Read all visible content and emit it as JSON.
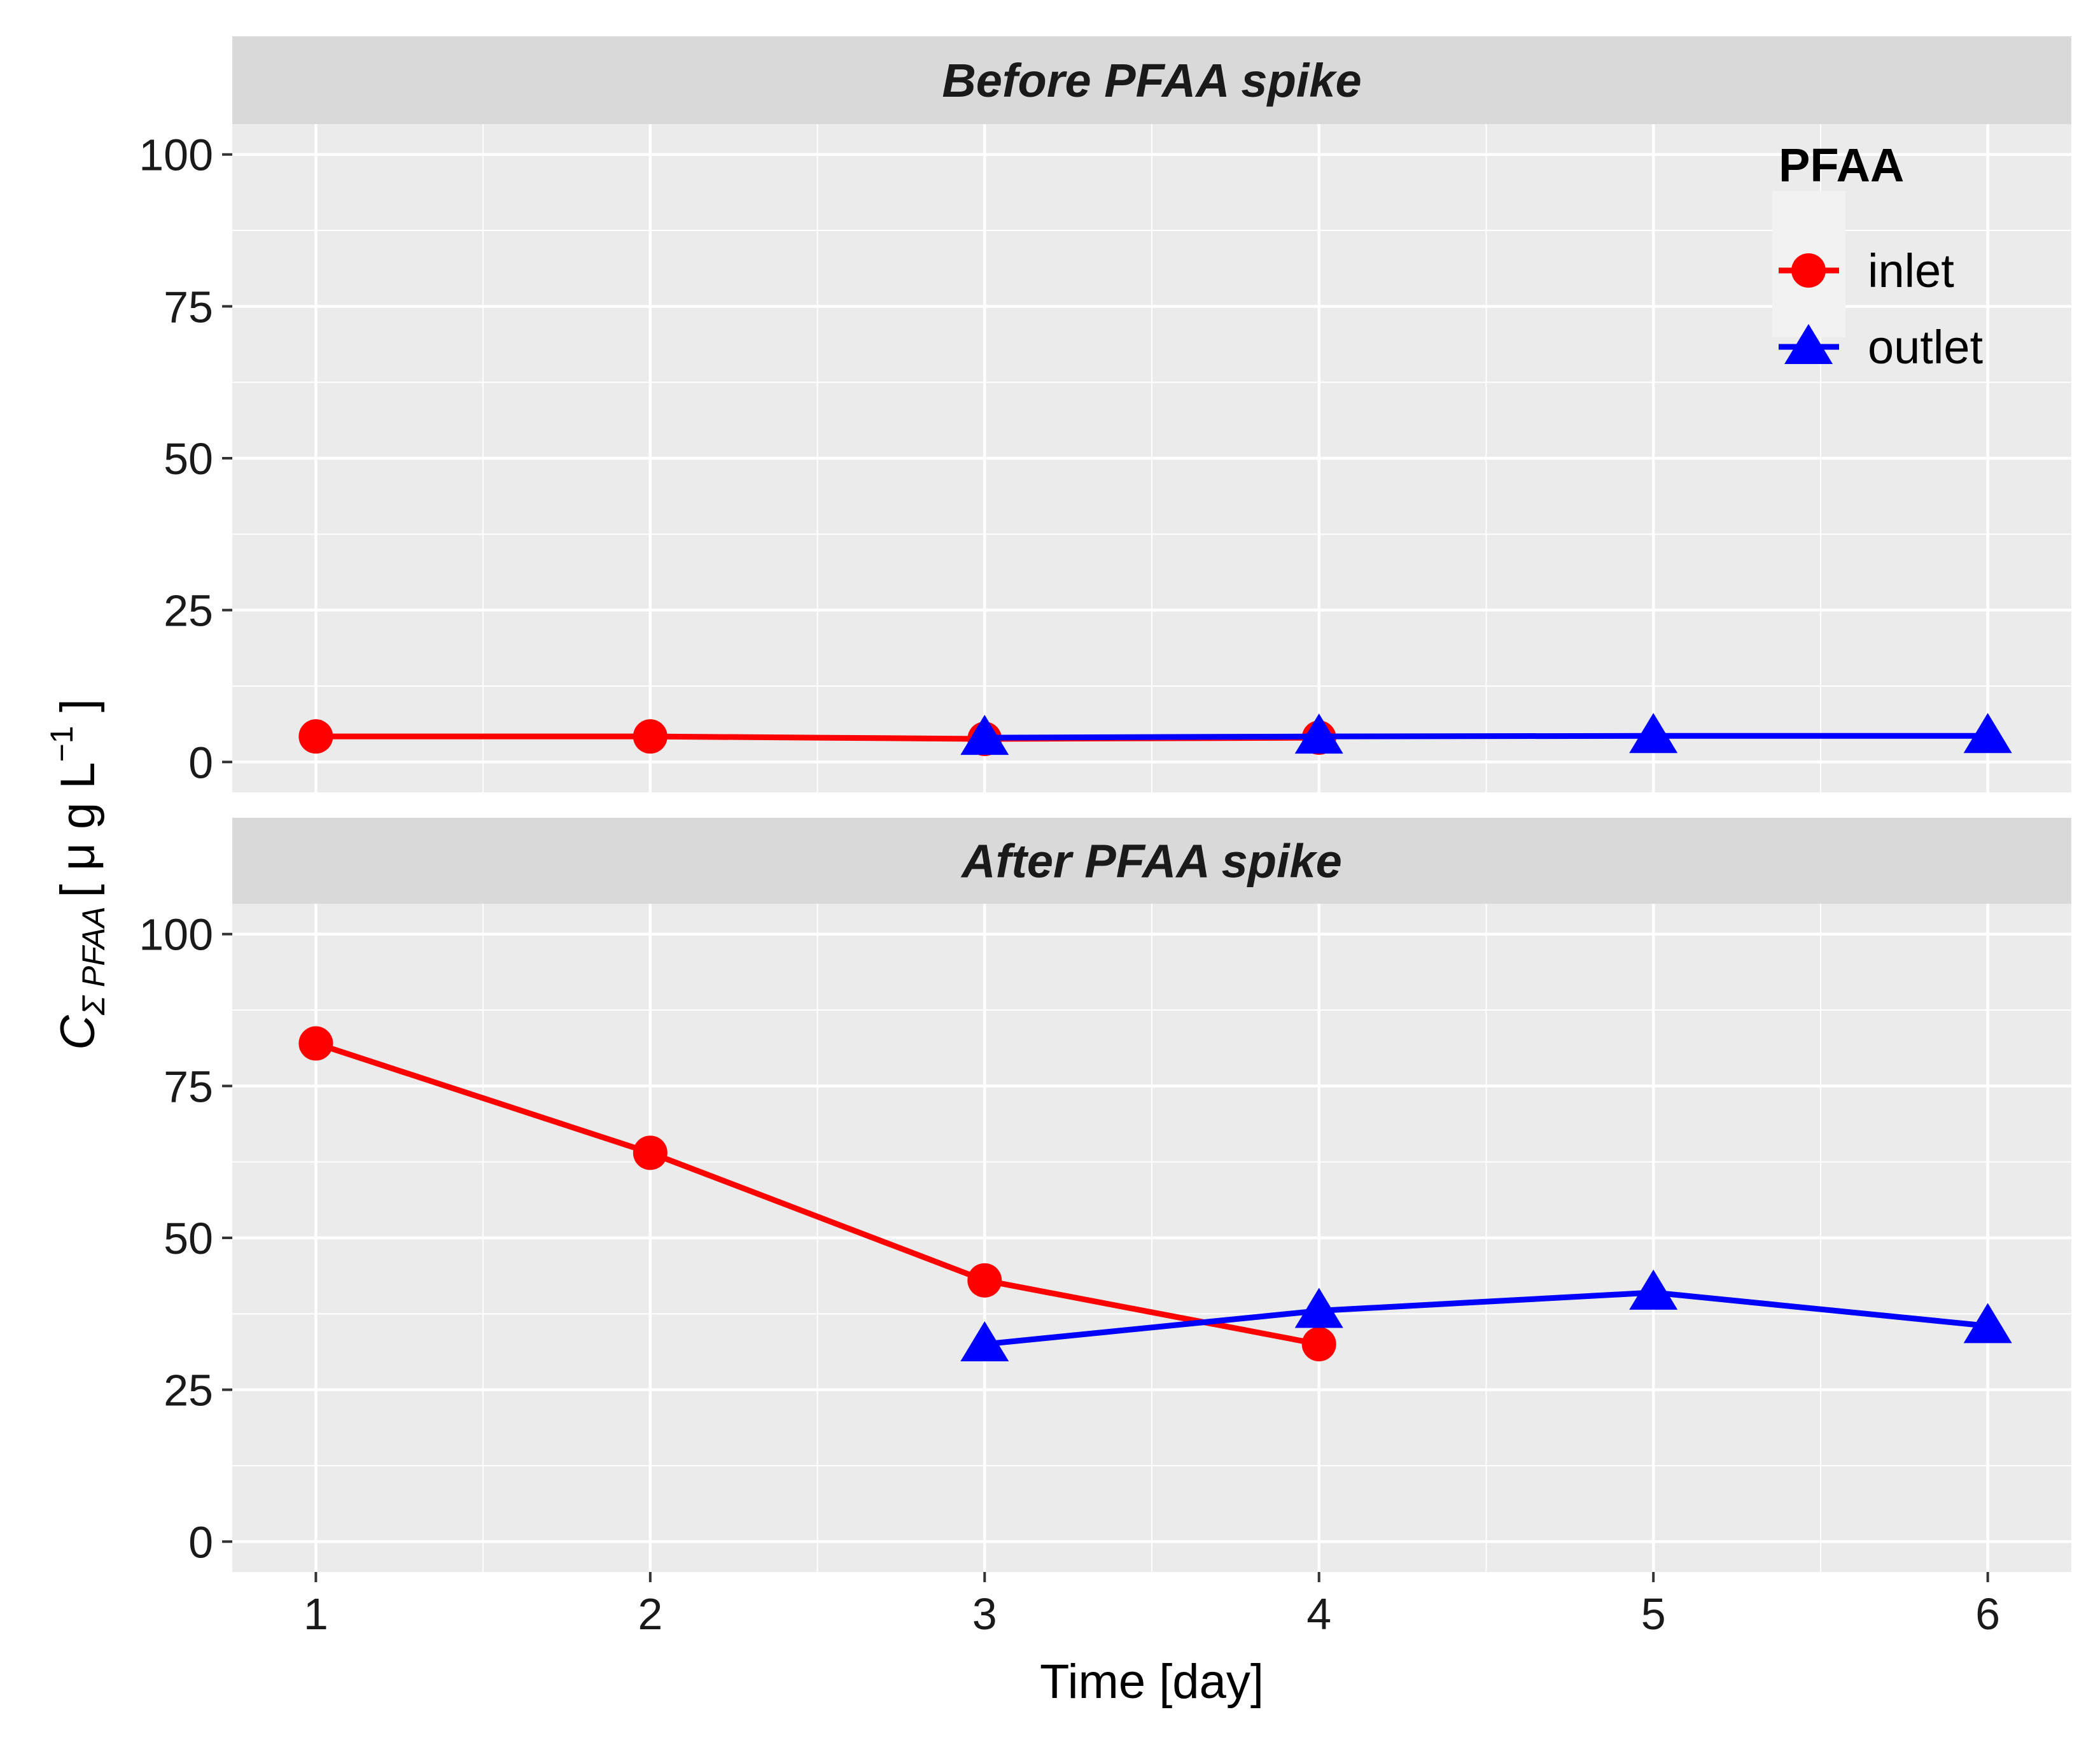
{
  "chart_data": {
    "type": "line",
    "facet_var": "period",
    "panels": [
      {
        "title": "Before PFAA spike",
        "series": [
          {
            "name": "inlet",
            "x": [
              1,
              2,
              3,
              4
            ],
            "values": [
              4.2,
              4.2,
              3.8,
              4.0
            ]
          },
          {
            "name": "outlet",
            "x": [
              3,
              4,
              5,
              6
            ],
            "values": [
              4.0,
              4.2,
              4.3,
              4.3
            ]
          }
        ]
      },
      {
        "title": "After PFAA spike",
        "series": [
          {
            "name": "inlet",
            "x": [
              1,
              2,
              3,
              4
            ],
            "values": [
              82,
              64,
              43,
              32.5
            ]
          },
          {
            "name": "outlet",
            "x": [
              3,
              4,
              5,
              6
            ],
            "values": [
              32.5,
              38,
              41,
              35.5
            ]
          }
        ]
      }
    ],
    "xlabel": "Time [day]",
    "ylabel": {
      "symbol": "C",
      "subscript": "Σ PFAA",
      "unit_open": "[ μ g  L",
      "unit_exp": "−1",
      "unit_close": " ]"
    },
    "x_ticks": [
      1,
      2,
      3,
      4,
      5,
      6
    ],
    "y_ticks": [
      0,
      25,
      50,
      75,
      100
    ],
    "xlim": [
      0.75,
      6.25
    ],
    "ylim": [
      -5,
      105
    ],
    "legend": {
      "title": "PFAA",
      "position": "top-right",
      "entries": [
        {
          "name": "inlet",
          "color": "#ff0000",
          "marker": "circle"
        },
        {
          "name": "outlet",
          "color": "#0000ff",
          "marker": "triangle"
        }
      ]
    },
    "colors": {
      "panel_bg": "#ebebeb",
      "strip_bg": "#d9d9d9",
      "grid": "#ffffff",
      "inlet": "#ff0000",
      "outlet": "#0000ff"
    }
  }
}
